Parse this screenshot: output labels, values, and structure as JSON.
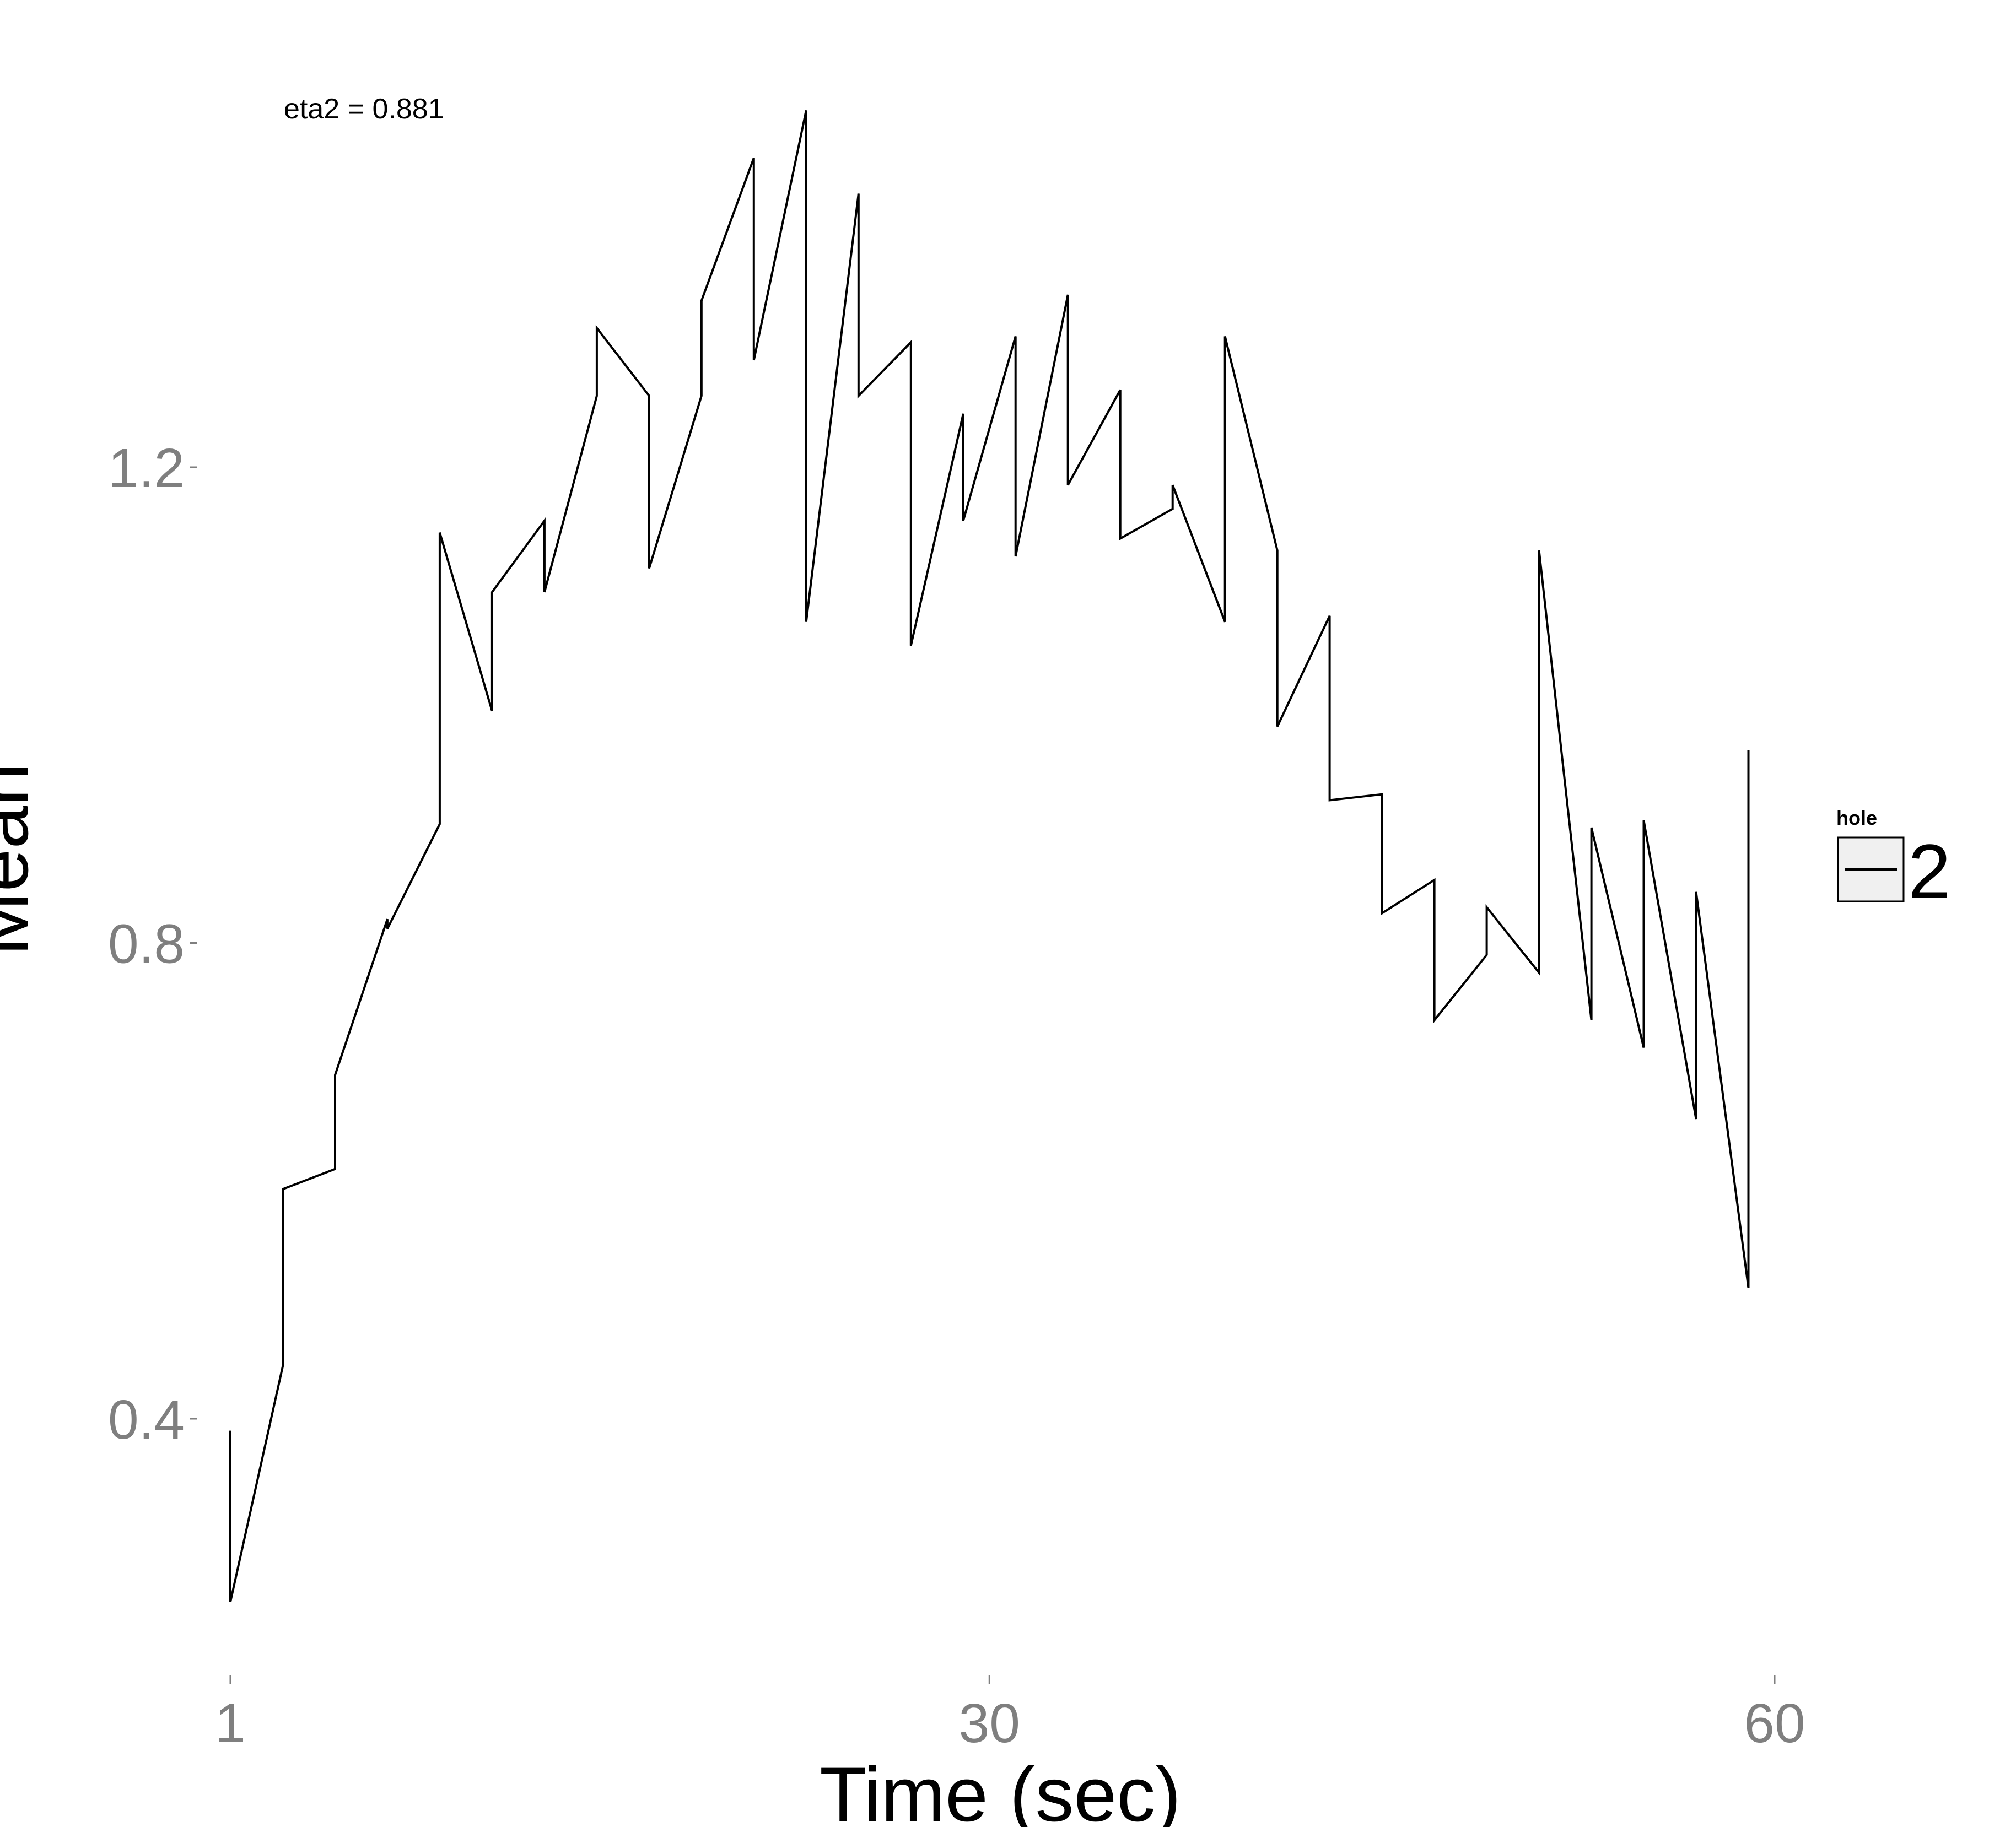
{
  "chart_data": {
    "type": "line",
    "title": "",
    "xlabel": "Time (sec)",
    "ylabel": "Mean",
    "annotation": "eta2 = 0.881",
    "x_ticks": [
      1,
      30,
      60
    ],
    "y_ticks": [
      "0.4",
      "0.8",
      "1.2"
    ],
    "xlim": [
      1,
      60
    ],
    "ylim": [
      0.25,
      1.5
    ],
    "grid": false,
    "legend": {
      "title": "hole",
      "position": "right",
      "entries": [
        "2"
      ]
    },
    "series": [
      {
        "color": "#000000",
        "points": [
          [
            1,
            0.39
          ],
          [
            1,
            0.246
          ],
          [
            3,
            0.444
          ],
          [
            3,
            0.593
          ],
          [
            5,
            0.61
          ],
          [
            5,
            0.689
          ],
          [
            7,
            0.82
          ],
          [
            7,
            0.812
          ],
          [
            9,
            0.9
          ],
          [
            9,
            1.145
          ],
          [
            11,
            0.995
          ],
          [
            11,
            1.095
          ],
          [
            13,
            1.155
          ],
          [
            13,
            1.095
          ],
          [
            15,
            1.26
          ],
          [
            15,
            1.317
          ],
          [
            17,
            1.26
          ],
          [
            17,
            1.115
          ],
          [
            19,
            1.26
          ],
          [
            19,
            1.34
          ],
          [
            21,
            1.46
          ],
          [
            21,
            1.29
          ],
          [
            23,
            1.5
          ],
          [
            23,
            1.07
          ],
          [
            25,
            1.43
          ],
          [
            25,
            1.26
          ],
          [
            27,
            1.305
          ],
          [
            27,
            1.05
          ],
          [
            29,
            1.245
          ],
          [
            29,
            1.155
          ],
          [
            31,
            1.31
          ],
          [
            31,
            1.125
          ],
          [
            33,
            1.345
          ],
          [
            33,
            1.185
          ],
          [
            35,
            1.265
          ],
          [
            35,
            1.14
          ],
          [
            37,
            1.165
          ],
          [
            37,
            1.185
          ],
          [
            39,
            1.07
          ],
          [
            39,
            1.31
          ],
          [
            41,
            1.13
          ],
          [
            41,
            0.982
          ],
          [
            43,
            1.075
          ],
          [
            43,
            0.92
          ],
          [
            45,
            0.925
          ],
          [
            45,
            0.825
          ],
          [
            47,
            0.853
          ],
          [
            47,
            0.735
          ],
          [
            49,
            0.79
          ],
          [
            49,
            0.83
          ],
          [
            51,
            0.775
          ],
          [
            51,
            1.13
          ],
          [
            53,
            0.735
          ],
          [
            53,
            0.897
          ],
          [
            55,
            0.712
          ],
          [
            55,
            0.903
          ],
          [
            57,
            0.652
          ],
          [
            57,
            0.843
          ],
          [
            59,
            0.51
          ],
          [
            59,
            0.962
          ]
        ]
      }
    ]
  }
}
